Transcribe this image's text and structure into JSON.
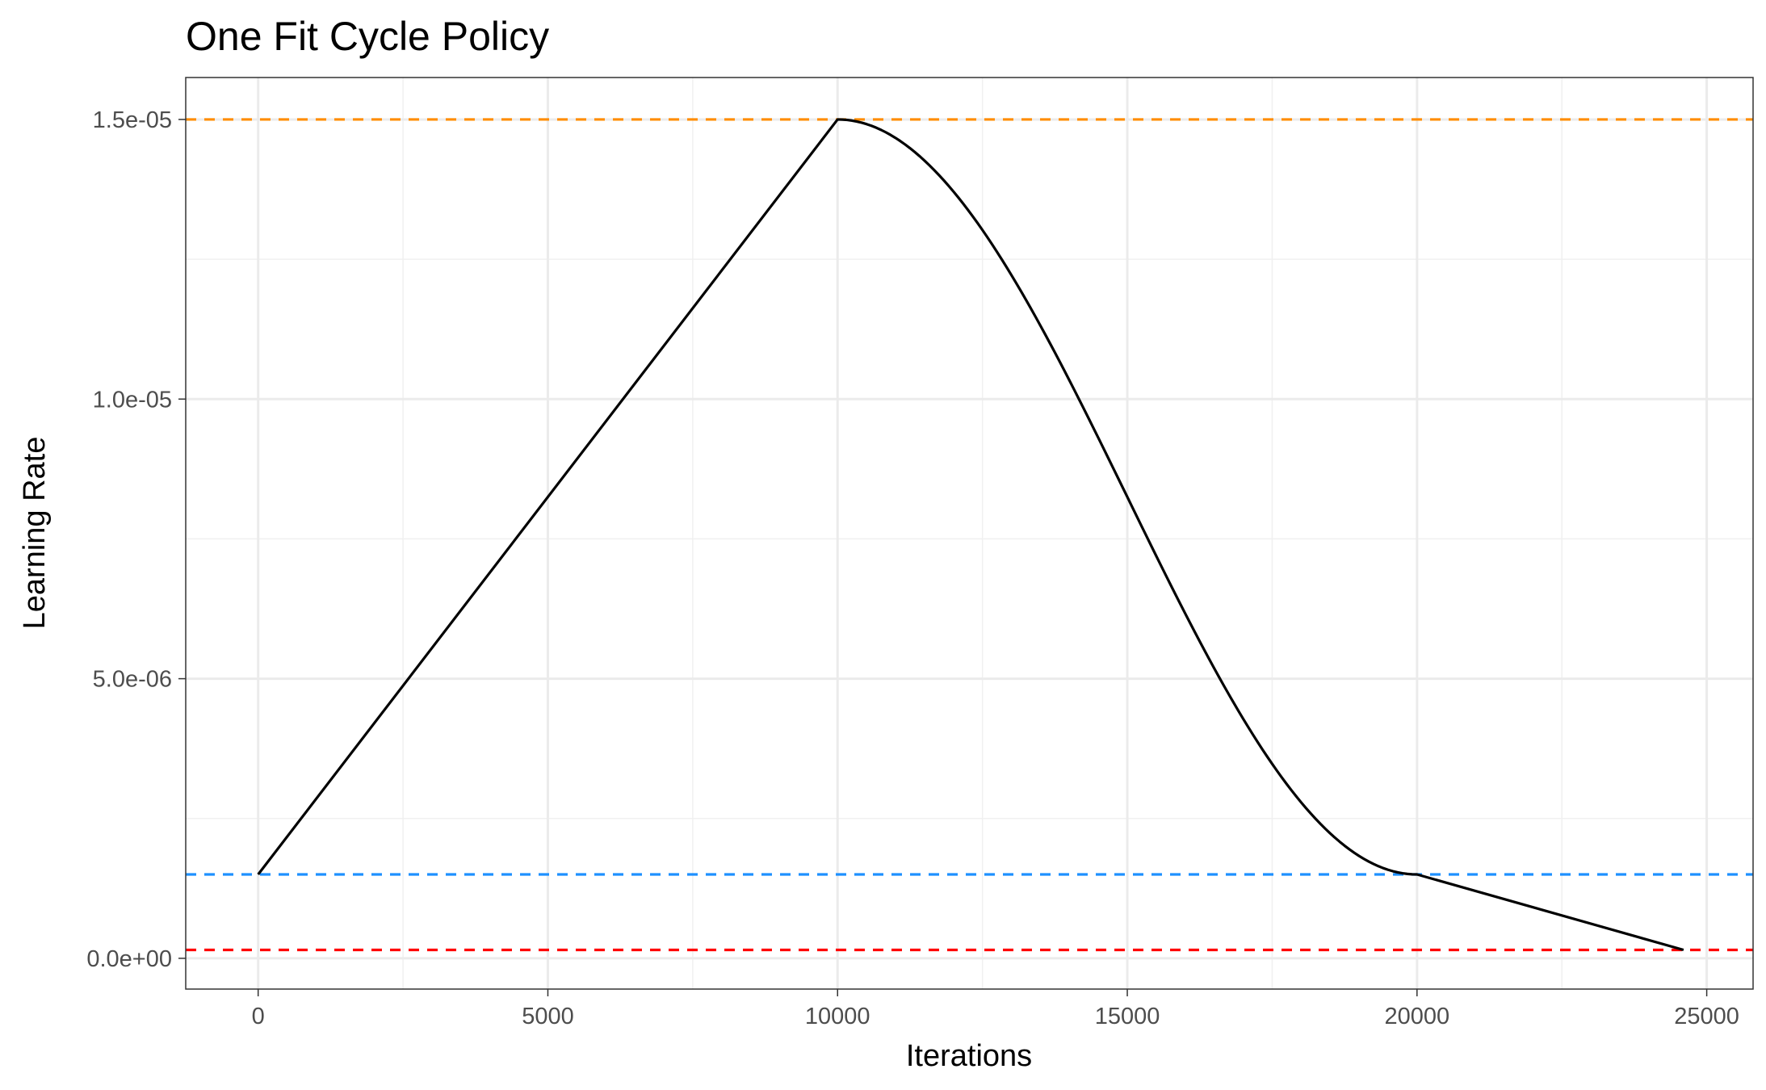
{
  "chart_data": {
    "type": "line",
    "title": "One Fit Cycle Policy",
    "xlabel": "Iterations",
    "ylabel": "Learning Rate",
    "xlim": [
      -1250,
      25800
    ],
    "ylim": [
      -5.5e-07,
      1.575e-05
    ],
    "x_ticks": [
      0,
      5000,
      10000,
      15000,
      20000,
      25000
    ],
    "x_tick_labels": [
      "0",
      "5000",
      "10000",
      "15000",
      "20000",
      "25000"
    ],
    "y_ticks": [
      0,
      5e-06,
      1e-05,
      1.5e-05
    ],
    "y_tick_labels": [
      "0.0e+00",
      "5.0e-06",
      "1.0e-05",
      "1.5e-05"
    ],
    "grid": true,
    "series": [
      {
        "color": "#000000",
        "segments": [
          {
            "shape": "linear",
            "x": [
              0,
              10000
            ],
            "y": [
              1.5e-06,
              1.5e-05
            ]
          },
          {
            "shape": "cosine",
            "x": [
              10000,
              20000
            ],
            "y": [
              1.5e-05,
              1.5e-06
            ]
          },
          {
            "shape": "linear",
            "x": [
              20000,
              24600
            ],
            "y": [
              1.5e-06,
              1.5e-07
            ]
          }
        ]
      }
    ],
    "hlines": [
      {
        "y": 1.5e-05,
        "color": "#ff8c00",
        "style": "dashed"
      },
      {
        "y": 1.5e-06,
        "color": "#1e90ff",
        "style": "dashed"
      },
      {
        "y": 1.5e-07,
        "color": "#ff0000",
        "style": "dashed"
      }
    ]
  }
}
